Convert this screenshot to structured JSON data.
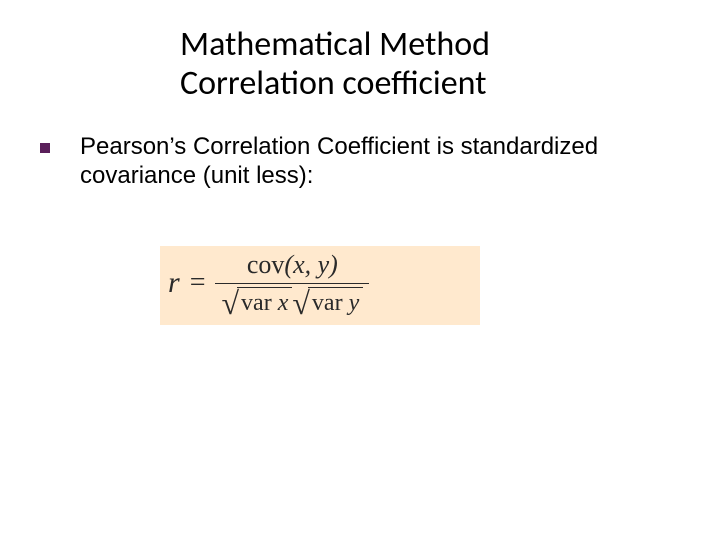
{
  "slide": {
    "title_line1": "Mathematical Method",
    "title_line2": "Correlation coefficient",
    "title_fontsize": 34,
    "title_color": "#000000",
    "background_color": "#ffffff"
  },
  "bullet": {
    "marker_color": "#5a1f5a",
    "marker_size": 10,
    "text": "Pearson’s Correlation Coefficient is standardized covariance (unit less):",
    "text_fontsize": 24,
    "text_color": "#000000",
    "text_font": "Tahoma"
  },
  "formula": {
    "background_color": "#ffe9ce",
    "text_color": "#2a2a2a",
    "font": "Times New Roman",
    "lhs": "r",
    "equals": "=",
    "numerator_fn": "cov",
    "numerator_args": "(x, y)",
    "denominator": {
      "sqrt1_fn": "var",
      "sqrt1_arg": " x",
      "sqrt2_fn": "var",
      "sqrt2_arg": " y"
    },
    "r_fontsize": 30,
    "num_fontsize": 26,
    "den_fontsize": 24
  }
}
